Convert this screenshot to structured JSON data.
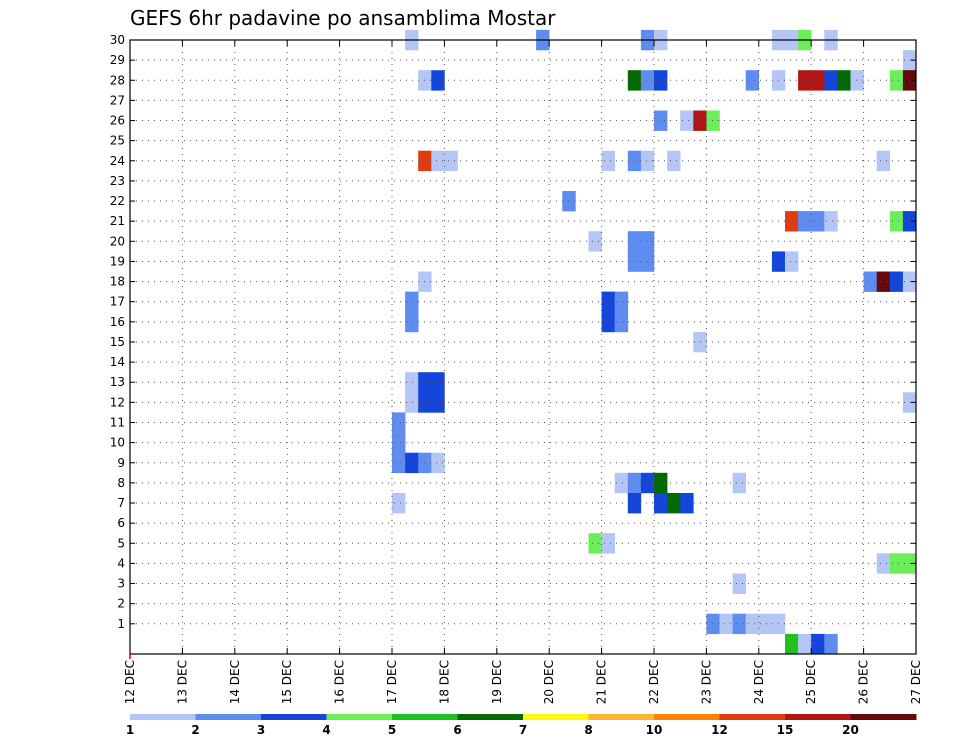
{
  "chart_data": {
    "type": "heatmap",
    "title": "GEFS 6hr padavine po ansamblima Mostar",
    "x_start": "12 DEC",
    "x_end": "27 DEC",
    "x_ticks": [
      "12 DEC",
      "13 DEC",
      "14 DEC",
      "15 DEC",
      "16 DEC",
      "17 DEC",
      "18 DEC",
      "19 DEC",
      "20 DEC",
      "21 DEC",
      "22 DEC",
      "23 DEC",
      "24 DEC",
      "25 DEC",
      "26 DEC",
      "27 DEC"
    ],
    "y_ticks": [
      1,
      2,
      3,
      4,
      5,
      6,
      7,
      8,
      9,
      10,
      11,
      12,
      13,
      14,
      15,
      16,
      17,
      18,
      19,
      20,
      21,
      22,
      23,
      24,
      25,
      26,
      27,
      28,
      29,
      30
    ],
    "ylim": [
      0,
      30
    ],
    "grid": true,
    "colorbar": {
      "labels": [
        "1",
        "2",
        "3",
        "4",
        "5",
        "6",
        "7",
        "8",
        "10",
        "12",
        "15",
        "20"
      ],
      "colors": [
        "#b4c6f5",
        "#5e8cf0",
        "#1446dc",
        "#6cee5a",
        "#1ec11e",
        "#036a03",
        "#fffa14",
        "#ffb432",
        "#ff8200",
        "#e13c0f",
        "#b41414",
        "#640a0a"
      ]
    },
    "cells": [
      {
        "m": 30,
        "d": "17.25",
        "lvl": 1
      },
      {
        "m": 30,
        "d": "19.75",
        "lvl": 2
      },
      {
        "m": 30,
        "d": "21.75",
        "lvl": 2
      },
      {
        "m": 30,
        "d": "22.0",
        "lvl": 1
      },
      {
        "m": 30,
        "d": "24.25",
        "lvl": 1
      },
      {
        "m": 30,
        "d": "24.5",
        "lvl": 1
      },
      {
        "m": 30,
        "d": "24.75",
        "lvl": 4
      },
      {
        "m": 30,
        "d": "25.25",
        "lvl": 1
      },
      {
        "m": 29,
        "d": "26.75",
        "lvl": 1
      },
      {
        "m": 28,
        "d": "17.5",
        "lvl": 1
      },
      {
        "m": 28,
        "d": "17.75",
        "lvl": 3
      },
      {
        "m": 28,
        "d": "21.5",
        "lvl": 6
      },
      {
        "m": 28,
        "d": "21.75",
        "lvl": 2
      },
      {
        "m": 28,
        "d": "22.0",
        "lvl": 3
      },
      {
        "m": 28,
        "d": "23.75",
        "lvl": 2
      },
      {
        "m": 28,
        "d": "24.25",
        "lvl": 1
      },
      {
        "m": 28,
        "d": "24.75",
        "lvl": 11
      },
      {
        "m": 28,
        "d": "25.0",
        "lvl": 11
      },
      {
        "m": 28,
        "d": "25.25",
        "lvl": 3
      },
      {
        "m": 28,
        "d": "25.5",
        "lvl": 6
      },
      {
        "m": 28,
        "d": "25.75",
        "lvl": 1
      },
      {
        "m": 28,
        "d": "26.5",
        "lvl": 4
      },
      {
        "m": 28,
        "d": "26.75",
        "lvl": 12
      },
      {
        "m": 26,
        "d": "22.0",
        "lvl": 2
      },
      {
        "m": 26,
        "d": "22.5",
        "lvl": 1
      },
      {
        "m": 26,
        "d": "22.75",
        "lvl": 11
      },
      {
        "m": 26,
        "d": "23.0",
        "lvl": 4
      },
      {
        "m": 24,
        "d": "17.5",
        "lvl": 10
      },
      {
        "m": 24,
        "d": "17.75",
        "lvl": 1
      },
      {
        "m": 24,
        "d": "18.0",
        "lvl": 1
      },
      {
        "m": 24,
        "d": "21.0",
        "lvl": 1
      },
      {
        "m": 24,
        "d": "21.5",
        "lvl": 2
      },
      {
        "m": 24,
        "d": "21.75",
        "lvl": 1
      },
      {
        "m": 24,
        "d": "22.25",
        "lvl": 1
      },
      {
        "m": 24,
        "d": "26.25",
        "lvl": 1
      },
      {
        "m": 22,
        "d": "20.25",
        "lvl": 2
      },
      {
        "m": 21,
        "d": "24.5",
        "lvl": 10
      },
      {
        "m": 21,
        "d": "24.75",
        "lvl": 2
      },
      {
        "m": 21,
        "d": "25.0",
        "lvl": 2
      },
      {
        "m": 21,
        "d": "25.25",
        "lvl": 1
      },
      {
        "m": 21,
        "d": "26.5",
        "lvl": 4
      },
      {
        "m": 21,
        "d": "26.75",
        "lvl": 3
      },
      {
        "m": 20,
        "d": "20.75",
        "lvl": 1
      },
      {
        "m": 20,
        "d": "21.5",
        "lvl": 2
      },
      {
        "m": 20,
        "d": "21.75",
        "lvl": 2
      },
      {
        "m": 19,
        "d": "21.5",
        "lvl": 2
      },
      {
        "m": 19,
        "d": "21.75",
        "lvl": 2
      },
      {
        "m": 19,
        "d": "24.25",
        "lvl": 3
      },
      {
        "m": 19,
        "d": "24.5",
        "lvl": 1
      },
      {
        "m": 18,
        "d": "17.5",
        "lvl": 1
      },
      {
        "m": 18,
        "d": "26.0",
        "lvl": 2
      },
      {
        "m": 18,
        "d": "26.25",
        "lvl": 12
      },
      {
        "m": 18,
        "d": "26.5",
        "lvl": 3
      },
      {
        "m": 18,
        "d": "26.75",
        "lvl": 1
      },
      {
        "m": 17,
        "d": "17.25",
        "lvl": 2
      },
      {
        "m": 17,
        "d": "21.0",
        "lvl": 3
      },
      {
        "m": 17,
        "d": "21.25",
        "lvl": 2
      },
      {
        "m": 16,
        "d": "17.25",
        "lvl": 2
      },
      {
        "m": 16,
        "d": "21.0",
        "lvl": 3
      },
      {
        "m": 16,
        "d": "21.25",
        "lvl": 2
      },
      {
        "m": 15,
        "d": "22.75",
        "lvl": 1
      },
      {
        "m": 13,
        "d": "17.25",
        "lvl": 1
      },
      {
        "m": 13,
        "d": "17.5",
        "lvl": 3
      },
      {
        "m": 13,
        "d": "17.75",
        "lvl": 3
      },
      {
        "m": 12,
        "d": "17.25",
        "lvl": 1
      },
      {
        "m": 12,
        "d": "17.5",
        "lvl": 3
      },
      {
        "m": 12,
        "d": "17.75",
        "lvl": 3
      },
      {
        "m": 12,
        "d": "26.75",
        "lvl": 1
      },
      {
        "m": 10,
        "d": "17.0",
        "lvl": 2
      },
      {
        "m": 11,
        "d": "17.0",
        "lvl": 2
      },
      {
        "m": 9,
        "d": "17.0",
        "lvl": 2
      },
      {
        "m": 9,
        "d": "17.25",
        "lvl": 3
      },
      {
        "m": 9,
        "d": "17.5",
        "lvl": 2
      },
      {
        "m": 9,
        "d": "17.75",
        "lvl": 1
      },
      {
        "m": 8,
        "d": "21.25",
        "lvl": 1
      },
      {
        "m": 8,
        "d": "21.5",
        "lvl": 2
      },
      {
        "m": 8,
        "d": "21.75",
        "lvl": 3
      },
      {
        "m": 8,
        "d": "22.0",
        "lvl": 6
      },
      {
        "m": 8,
        "d": "23.5",
        "lvl": 1
      },
      {
        "m": 7,
        "d": "17.0",
        "lvl": 1
      },
      {
        "m": 7,
        "d": "21.5",
        "lvl": 3
      },
      {
        "m": 7,
        "d": "22.0",
        "lvl": 3
      },
      {
        "m": 7,
        "d": "22.25",
        "lvl": 6
      },
      {
        "m": 7,
        "d": "22.5",
        "lvl": 3
      },
      {
        "m": 5,
        "d": "20.75",
        "lvl": 4
      },
      {
        "m": 5,
        "d": "21.0",
        "lvl": 1
      },
      {
        "m": 4,
        "d": "26.25",
        "lvl": 1
      },
      {
        "m": 4,
        "d": "26.5",
        "lvl": 4
      },
      {
        "m": 4,
        "d": "26.75",
        "lvl": 4
      },
      {
        "m": 3,
        "d": "23.5",
        "lvl": 1
      },
      {
        "m": 1,
        "d": "23.0",
        "lvl": 2
      },
      {
        "m": 1,
        "d": "23.25",
        "lvl": 1
      },
      {
        "m": 1,
        "d": "23.5",
        "lvl": 2
      },
      {
        "m": 1,
        "d": "23.75",
        "lvl": 1
      },
      {
        "m": 1,
        "d": "24.0",
        "lvl": 1
      },
      {
        "m": 1,
        "d": "24.25",
        "lvl": 1
      },
      {
        "m": 0,
        "d": "24.5",
        "lvl": 5
      },
      {
        "m": 0,
        "d": "24.75",
        "lvl": 1
      },
      {
        "m": 0,
        "d": "25.0",
        "lvl": 3
      },
      {
        "m": 0,
        "d": "25.25",
        "lvl": 2
      }
    ]
  }
}
